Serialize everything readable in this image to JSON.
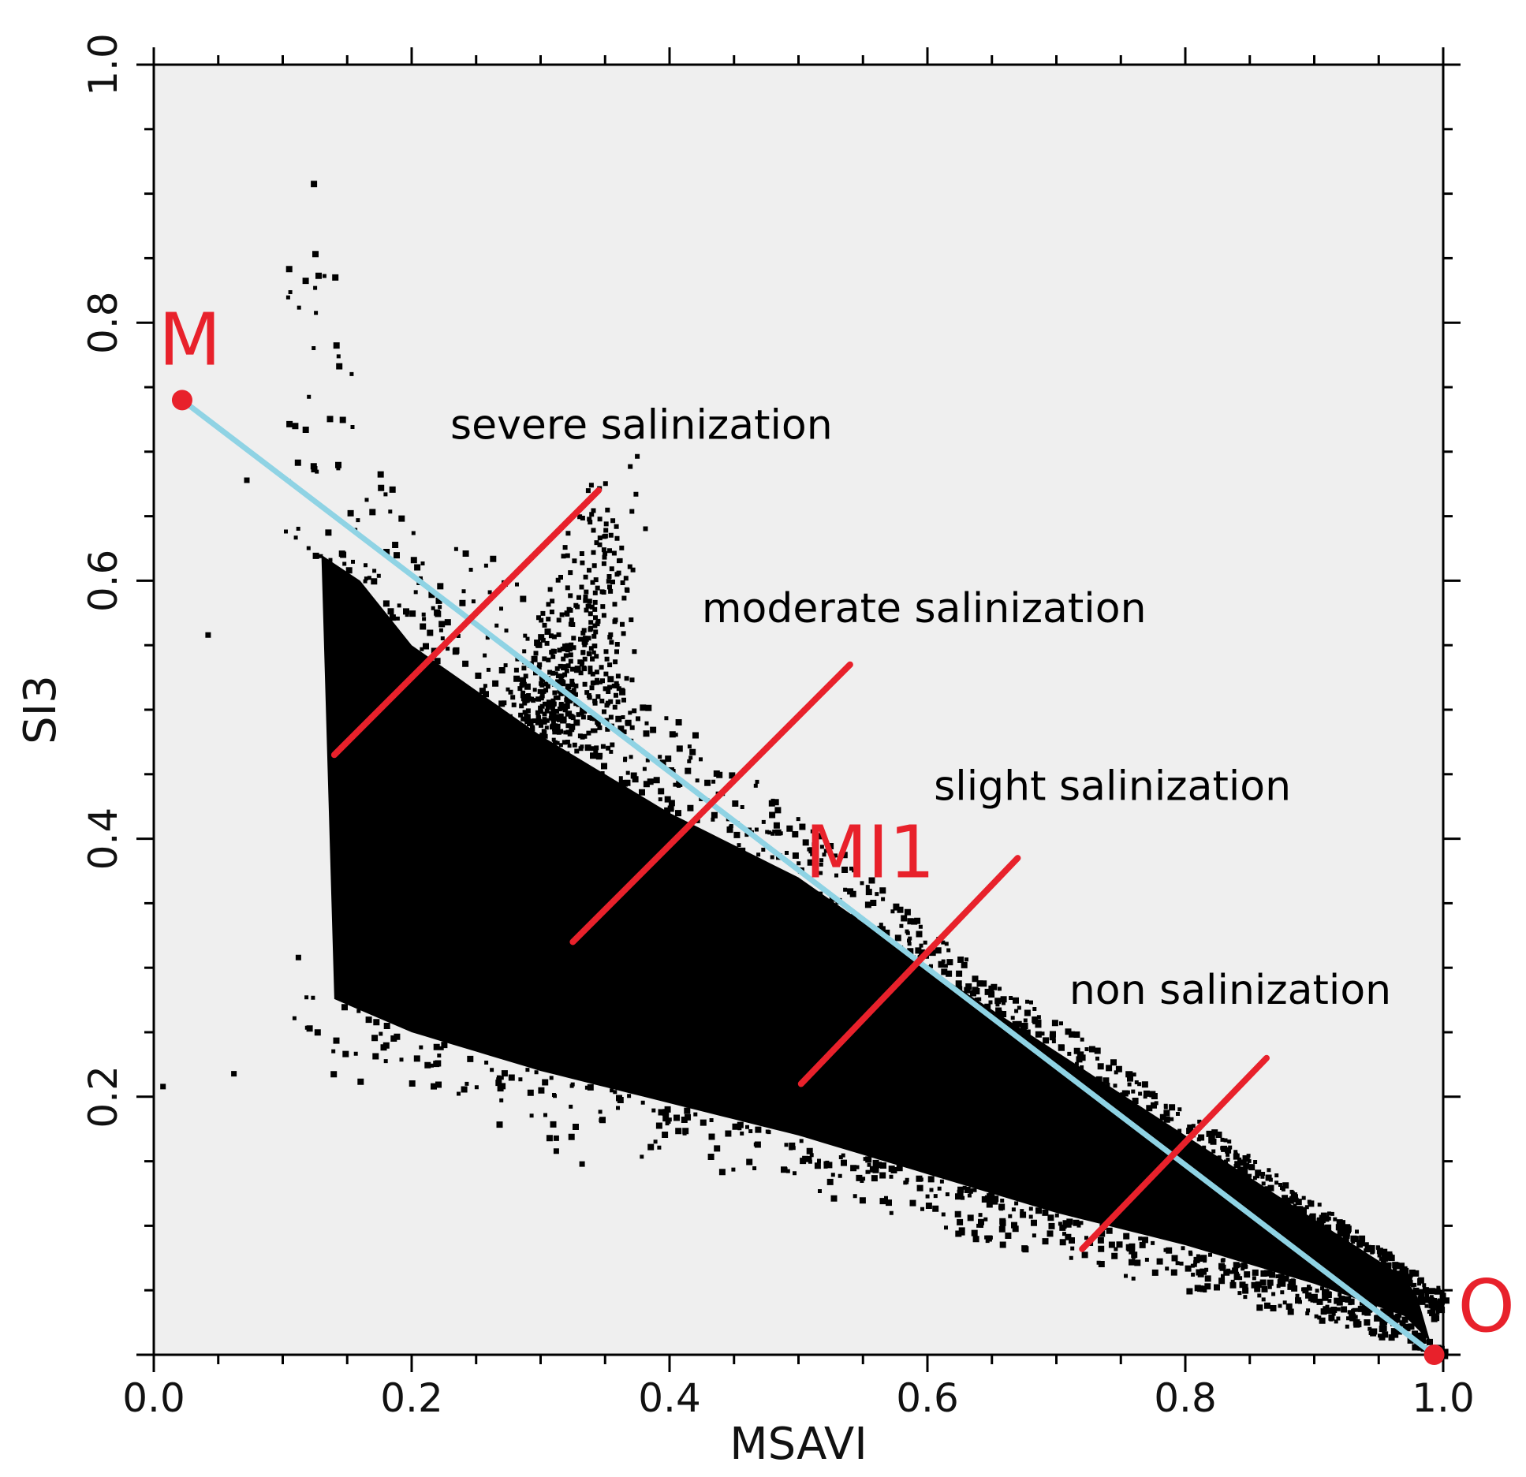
{
  "chart_data": {
    "type": "scatter",
    "title": "",
    "xlabel": "MSAVI",
    "ylabel": "SI3",
    "xlim": [
      0.0,
      1.0
    ],
    "ylim": [
      0.0,
      1.0
    ],
    "x_ticks": [
      "0.0",
      "0.2",
      "0.4",
      "0.6",
      "0.8",
      "1.0"
    ],
    "y_ticks": [
      "0.2",
      "0.4",
      "0.6",
      "0.8",
      "1.0"
    ],
    "grid": false,
    "plot_background": "#efefef",
    "point_color": "#000000",
    "scatter_description": "dense black point cloud: triangular feature space narrowing from MSAVI 0.12-0.4 toward MSAVI 1.0",
    "line": {
      "name": "MI1",
      "color": "#8fd3e4",
      "from": [
        0.022,
        0.74
      ],
      "to": [
        0.993,
        0.0
      ]
    },
    "points": [
      {
        "label": "M",
        "x": 0.022,
        "y": 0.74,
        "color": "#e8212b"
      },
      {
        "label": "O",
        "x": 0.993,
        "y": 0.0,
        "color": "#e8212b"
      }
    ],
    "line_label": {
      "text": "MI1",
      "x": 0.505,
      "y": 0.37
    },
    "zone_boundaries": [
      {
        "from": [
          0.14,
          0.465
        ],
        "to": [
          0.345,
          0.67
        ]
      },
      {
        "from": [
          0.325,
          0.32
        ],
        "to": [
          0.54,
          0.535
        ]
      },
      {
        "from": [
          0.502,
          0.21
        ],
        "to": [
          0.67,
          0.385
        ]
      },
      {
        "from": [
          0.72,
          0.082
        ],
        "to": [
          0.863,
          0.23
        ]
      }
    ],
    "zone_color": "#e8212b",
    "annotations": [
      {
        "text": "severe salinization",
        "x": 0.23,
        "y": 0.71
      },
      {
        "text": "moderate salinization",
        "x": 0.425,
        "y": 0.568
      },
      {
        "text": "slight salinization",
        "x": 0.605,
        "y": 0.43
      },
      {
        "text": "non salinization",
        "x": 0.71,
        "y": 0.272
      }
    ]
  }
}
